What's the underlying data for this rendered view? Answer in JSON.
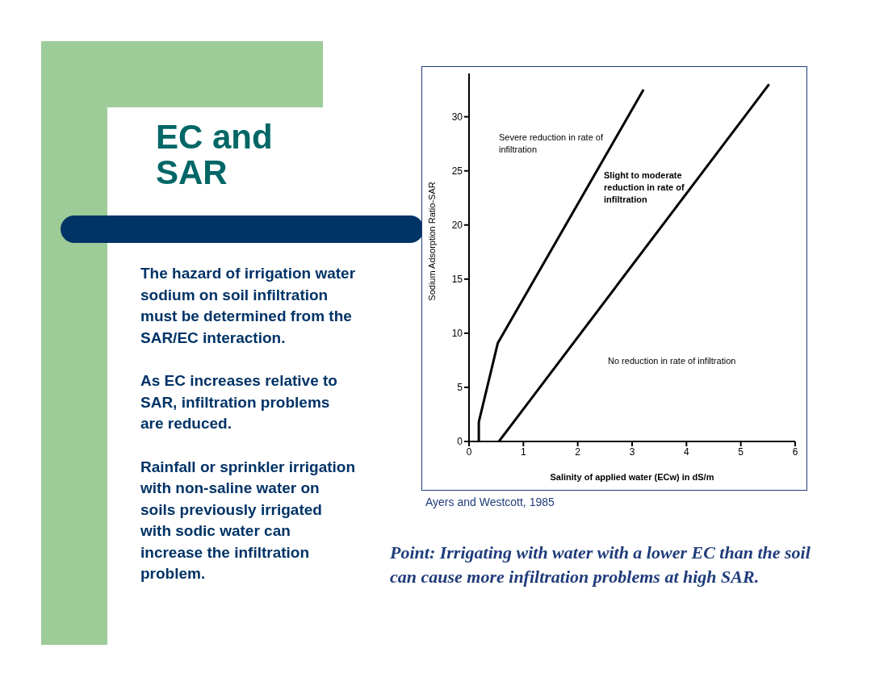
{
  "chart_data": {
    "type": "line",
    "title": "EC and SAR",
    "xlabel": "Salinity of applied water (ECw) in dS/m",
    "ylabel": "Sodium Adsorption Ratio-SAR",
    "series": [
      {
        "color": "#000000",
        "x": [
          0.18,
          0.18,
          0.53,
          3.21
        ],
        "values": [
          0,
          1.8,
          9.1,
          32.5
        ]
      },
      {
        "color": "#000000",
        "x": [
          0.55,
          5.52
        ],
        "values": [
          0,
          33.0
        ]
      }
    ],
    "xlim": [
      0,
      6
    ],
    "xticks": [
      0,
      1,
      2,
      3,
      4,
      5,
      6
    ],
    "ylim": [
      0,
      34
    ],
    "yticks": [
      0,
      5,
      10,
      15,
      20,
      25,
      30
    ],
    "grid": false,
    "legend": false,
    "marker": "none",
    "line_style": "solid",
    "annotations": [
      "Severe reduction in rate of infiltration",
      "Slight to moderate reduction in rate of infiltration",
      "No reduction in rate of infiltration",
      "The hazard of irrigation water sodium on soil infiltration must be determined from the SAR/EC interaction.",
      "As EC increases relative to SAR, infiltration problems are reduced.",
      "Rainfall or sprinkler irrigation with non-saline water on soils previously irrigated with sodic water can increase the infiltration problem.",
      "Ayers and Westcott, 1985",
      "Point:  Irrigating with water with a lower EC than the soil can cause more infiltration problems at high SAR."
    ]
  }
}
